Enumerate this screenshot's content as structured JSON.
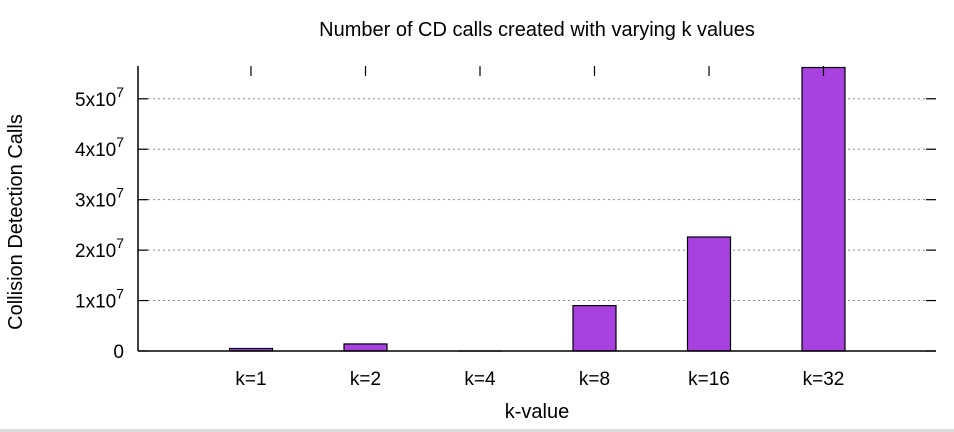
{
  "chart_data": {
    "type": "bar",
    "title": "Number of CD calls created with varying k values",
    "xlabel": "k-value",
    "ylabel": "Collision Detection Calls",
    "categories": [
      "k=1",
      "k=2",
      "k=4",
      "k=8",
      "k=16",
      "k=32"
    ],
    "values": [
      500000,
      1400000,
      0,
      9000000,
      22600000,
      56200000
    ],
    "ylim": [
      0,
      56500000
    ],
    "yticks": [
      {
        "value": 0,
        "base": "0",
        "exp": ""
      },
      {
        "value": 10000000,
        "base": "1x10",
        "exp": "7"
      },
      {
        "value": 20000000,
        "base": "2x10",
        "exp": "7"
      },
      {
        "value": 30000000,
        "base": "3x10",
        "exp": "7"
      },
      {
        "value": 40000000,
        "base": "4x10",
        "exp": "7"
      },
      {
        "value": 50000000,
        "base": "5x10",
        "exp": "7"
      }
    ],
    "grid": true,
    "bar_color": "#a742e0"
  }
}
